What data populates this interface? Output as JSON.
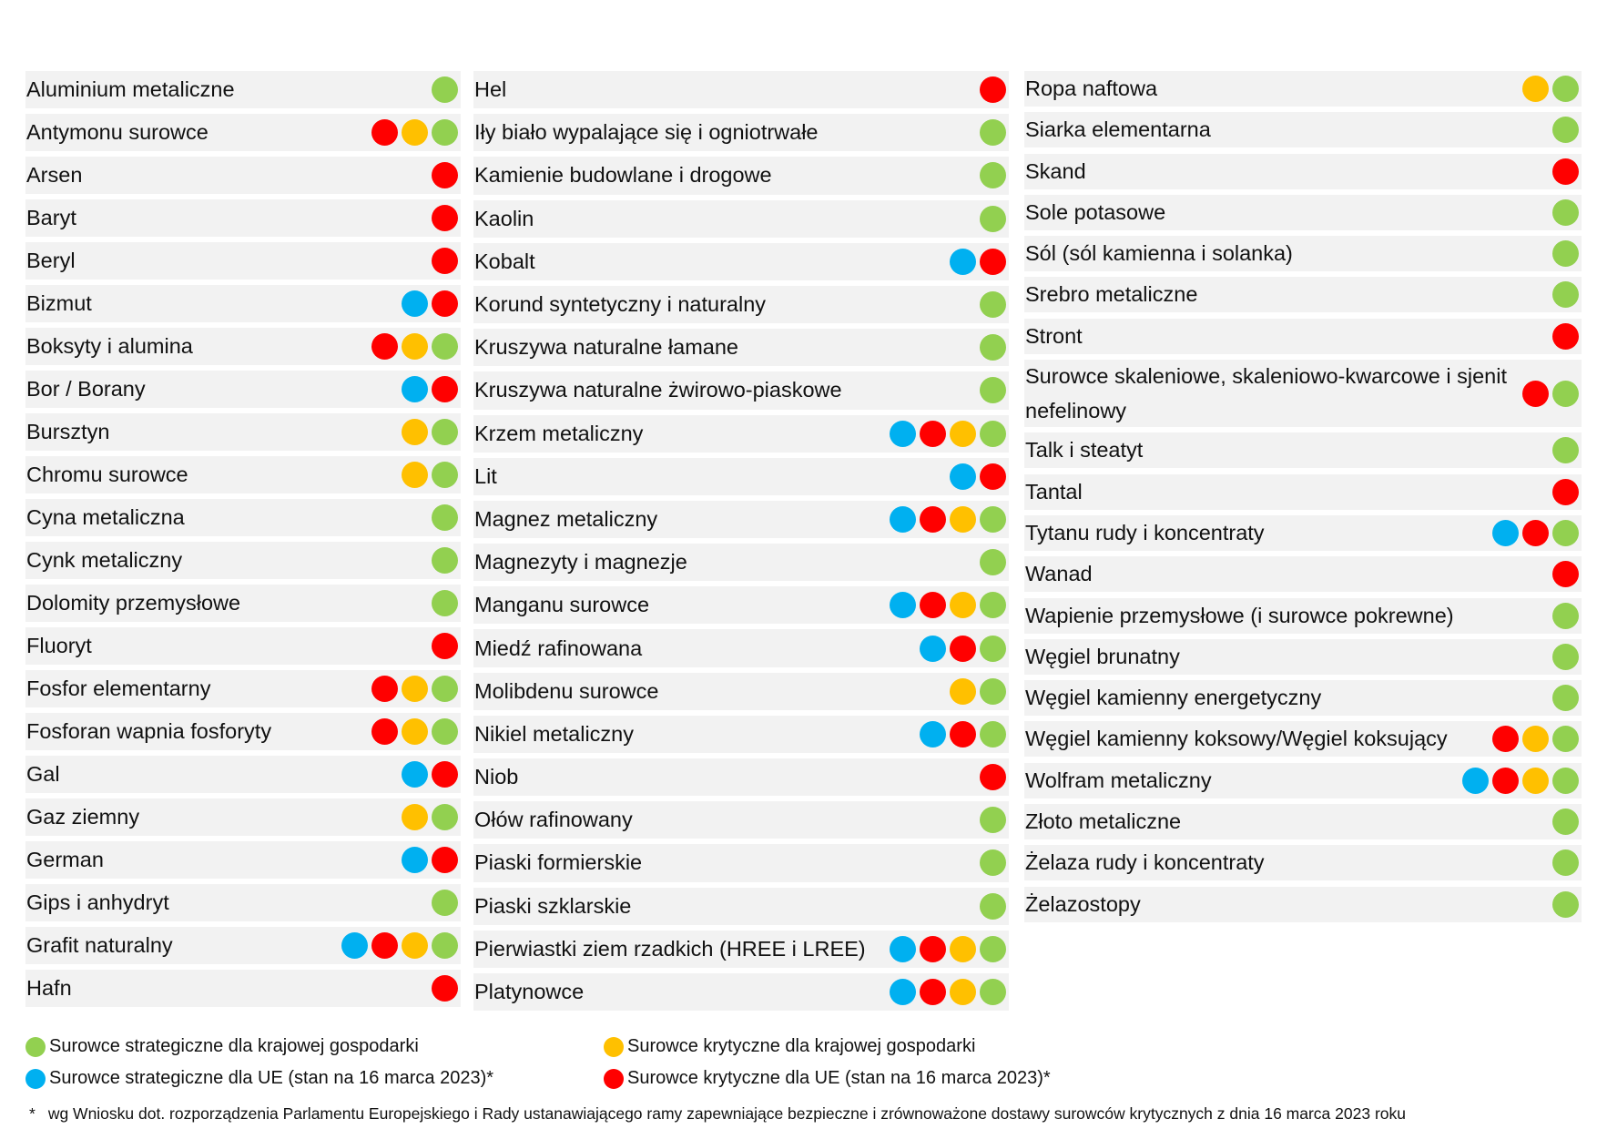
{
  "columns": [
    [
      {
        "label": "Aluminium metaliczne",
        "dots": [
          "green"
        ]
      },
      {
        "label": "Antymonu surowce",
        "dots": [
          "red",
          "yellow",
          "green"
        ]
      },
      {
        "label": "Arsen",
        "dots": [
          "red"
        ]
      },
      {
        "label": "Baryt",
        "dots": [
          "red"
        ]
      },
      {
        "label": "Beryl",
        "dots": [
          "red"
        ]
      },
      {
        "label": "Bizmut",
        "dots": [
          "blue",
          "red"
        ]
      },
      {
        "label": "Boksyty i alumina",
        "dots": [
          "red",
          "yellow",
          "green"
        ]
      },
      {
        "label": "Bor / Borany",
        "dots": [
          "blue",
          "red"
        ]
      },
      {
        "label": "Bursztyn",
        "dots": [
          "yellow",
          "green"
        ]
      },
      {
        "label": "Chromu surowce",
        "dots": [
          "yellow",
          "green"
        ]
      },
      {
        "label": "Cyna metaliczna",
        "dots": [
          "green"
        ]
      },
      {
        "label": "Cynk metaliczny",
        "dots": [
          "green"
        ]
      },
      {
        "label": "Dolomity przemysłowe",
        "dots": [
          "green"
        ]
      },
      {
        "label": "Fluoryt",
        "dots": [
          "red"
        ]
      },
      {
        "label": "Fosfor elementarny",
        "dots": [
          "red",
          "yellow",
          "green"
        ]
      },
      {
        "label": "Fosforan wapnia fosforyty",
        "dots": [
          "red",
          "yellow",
          "green"
        ]
      },
      {
        "label": "Gal",
        "dots": [
          "blue",
          "red"
        ]
      },
      {
        "label": "Gaz ziemny",
        "dots": [
          "yellow",
          "green"
        ]
      },
      {
        "label": "German",
        "dots": [
          "blue",
          "red"
        ]
      },
      {
        "label": "Gips i anhydryt",
        "dots": [
          "green"
        ]
      },
      {
        "label": "Grafit naturalny",
        "dots": [
          "blue",
          "red",
          "yellow",
          "green"
        ]
      },
      {
        "label": "Hafn",
        "dots": [
          "red"
        ]
      }
    ],
    [
      {
        "label": "Hel",
        "dots": [
          "red"
        ]
      },
      {
        "label": "Iły biało wypalające się i ogniotrwałe",
        "dots": [
          "green"
        ]
      },
      {
        "label": "Kamienie budowlane i drogowe",
        "dots": [
          "green"
        ]
      },
      {
        "label": "Kaolin",
        "dots": [
          "green"
        ]
      },
      {
        "label": "Kobalt",
        "dots": [
          "blue",
          "red"
        ]
      },
      {
        "label": "Korund syntetyczny i naturalny",
        "dots": [
          "green"
        ]
      },
      {
        "label": "Kruszywa naturalne łamane",
        "dots": [
          "green"
        ]
      },
      {
        "label": "Kruszywa naturalne żwirowo-piaskowe",
        "dots": [
          "green"
        ]
      },
      {
        "label": "Krzem metaliczny",
        "dots": [
          "blue",
          "red",
          "yellow",
          "green"
        ]
      },
      {
        "label": "Lit",
        "dots": [
          "blue",
          "red"
        ]
      },
      {
        "label": "Magnez metaliczny",
        "dots": [
          "blue",
          "red",
          "yellow",
          "green"
        ]
      },
      {
        "label": "Magnezyty i magnezje",
        "dots": [
          "green"
        ]
      },
      {
        "label": "Manganu surowce",
        "dots": [
          "blue",
          "red",
          "yellow",
          "green"
        ]
      },
      {
        "label": "Miedź rafinowana",
        "dots": [
          "blue",
          "red",
          "green"
        ]
      },
      {
        "label": "Molibdenu surowce",
        "dots": [
          "yellow",
          "green"
        ]
      },
      {
        "label": "Nikiel metaliczny",
        "dots": [
          "blue",
          "red",
          "green"
        ]
      },
      {
        "label": "Niob",
        "dots": [
          "red"
        ]
      },
      {
        "label": "Ołów rafinowany",
        "dots": [
          "green"
        ]
      },
      {
        "label": "Piaski formierskie",
        "dots": [
          "green"
        ]
      },
      {
        "label": "Piaski szklarskie",
        "dots": [
          "green"
        ]
      },
      {
        "label": "Pierwiastki ziem rzadkich (HREE i LREE)",
        "dots": [
          "blue",
          "red",
          "yellow",
          "green"
        ]
      },
      {
        "label": "Platynowce",
        "dots": [
          "blue",
          "red",
          "yellow",
          "green"
        ]
      }
    ],
    [
      {
        "label": "Ropa naftowa",
        "dots": [
          "yellow",
          "green"
        ]
      },
      {
        "label": "Siarka elementarna",
        "dots": [
          "green"
        ]
      },
      {
        "label": "Skand",
        "dots": [
          "red"
        ]
      },
      {
        "label": "Sole potasowe",
        "dots": [
          "green"
        ]
      },
      {
        "label": "Sól (sól kamienna i solanka)",
        "dots": [
          "green"
        ]
      },
      {
        "label": "Srebro metaliczne",
        "dots": [
          "green"
        ]
      },
      {
        "label": "Stront",
        "dots": [
          "red"
        ]
      },
      {
        "label": "Surowce skaleniowe, skaleniowo-kwarcowe i sjenit nefelinowy",
        "dots": [
          "red",
          "green"
        ],
        "tall": true
      },
      {
        "label": "Talk i steatyt",
        "dots": [
          "green"
        ]
      },
      {
        "label": "Tantal",
        "dots": [
          "red"
        ]
      },
      {
        "label": "Tytanu rudy i koncentraty",
        "dots": [
          "blue",
          "red",
          "green"
        ]
      },
      {
        "label": "Wanad",
        "dots": [
          "red"
        ]
      },
      {
        "label": "Wapienie przemysłowe (i surowce pokrewne)",
        "dots": [
          "green"
        ]
      },
      {
        "label": "Węgiel brunatny",
        "dots": [
          "green"
        ]
      },
      {
        "label": "Węgiel kamienny energetyczny",
        "dots": [
          "green"
        ]
      },
      {
        "label": "Węgiel kamienny koksowy/Węgiel koksujący",
        "dots": [
          "red",
          "yellow",
          "green"
        ]
      },
      {
        "label": "Wolfram metaliczny",
        "dots": [
          "blue",
          "red",
          "yellow",
          "green"
        ]
      },
      {
        "label": "Złoto metaliczne",
        "dots": [
          "green"
        ]
      },
      {
        "label": "Żelaza rudy i koncentraty",
        "dots": [
          "green"
        ]
      },
      {
        "label": "Żelazostopy",
        "dots": [
          "green"
        ]
      }
    ]
  ],
  "legend": {
    "green": "Surowce strategiczne dla krajowej gospodarki",
    "yellow": "Surowce krytyczne dla krajowej gospodarki",
    "blue": "Surowce strategiczne dla UE (stan na 16 marca 2023)*",
    "red": "Surowce krytyczne dla UE (stan na 16 marca 2023)*"
  },
  "footnote": {
    "star": "*",
    "text": "wg Wniosku dot. rozporządzenia Parlamentu Europejskiego i Rady ustanawiającego ramy zapewniające bezpieczne i zrównoważone dostawy surowców krytycznych z dnia 16 marca 2023 roku"
  },
  "colors": {
    "green": "#92d050",
    "yellow": "#ffc000",
    "red": "#ff0000",
    "blue": "#00b0f0",
    "row_background": "#f2f2f2"
  }
}
